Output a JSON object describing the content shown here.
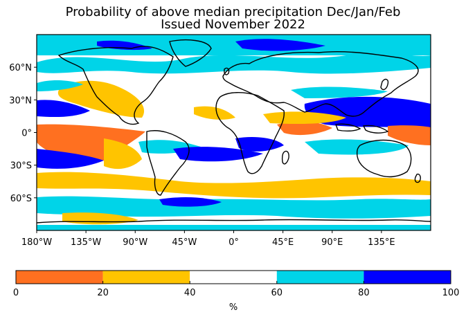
{
  "title": {
    "line1": "Probability of above median precipitation Dec/Jan/Feb",
    "line2": "Issued November 2022"
  },
  "map": {
    "projection": "equirectangular",
    "lon_range": [
      -180,
      180
    ],
    "lat_range": [
      -90,
      90
    ],
    "lat_ticks": [
      {
        "value": 60,
        "label": "60°N"
      },
      {
        "value": 30,
        "label": "30°N"
      },
      {
        "value": 0,
        "label": "0°"
      },
      {
        "value": -30,
        "label": "30°S"
      },
      {
        "value": -60,
        "label": "60°S"
      }
    ],
    "lon_ticks": [
      {
        "value": -180,
        "label": "180°W"
      },
      {
        "value": -135,
        "label": "135°W"
      },
      {
        "value": -90,
        "label": "90°W"
      },
      {
        "value": -45,
        "label": "45°W"
      },
      {
        "value": 0,
        "label": "0°"
      },
      {
        "value": 45,
        "label": "45°E"
      },
      {
        "value": 90,
        "label": "90°E"
      },
      {
        "value": 135,
        "label": "135°E"
      }
    ]
  },
  "colorbar": {
    "unit_label": "%",
    "bins": [
      {
        "from": 0,
        "to": 20,
        "color": "#ff7020"
      },
      {
        "from": 20,
        "to": 40,
        "color": "#ffc400"
      },
      {
        "from": 40,
        "to": 60,
        "color": "#ffffff"
      },
      {
        "from": 60,
        "to": 80,
        "color": "#00d4e8"
      },
      {
        "from": 80,
        "to": 100,
        "color": "#0000ff"
      }
    ],
    "tick_labels": [
      "0",
      "20",
      "40",
      "60",
      "80",
      "100"
    ]
  }
}
